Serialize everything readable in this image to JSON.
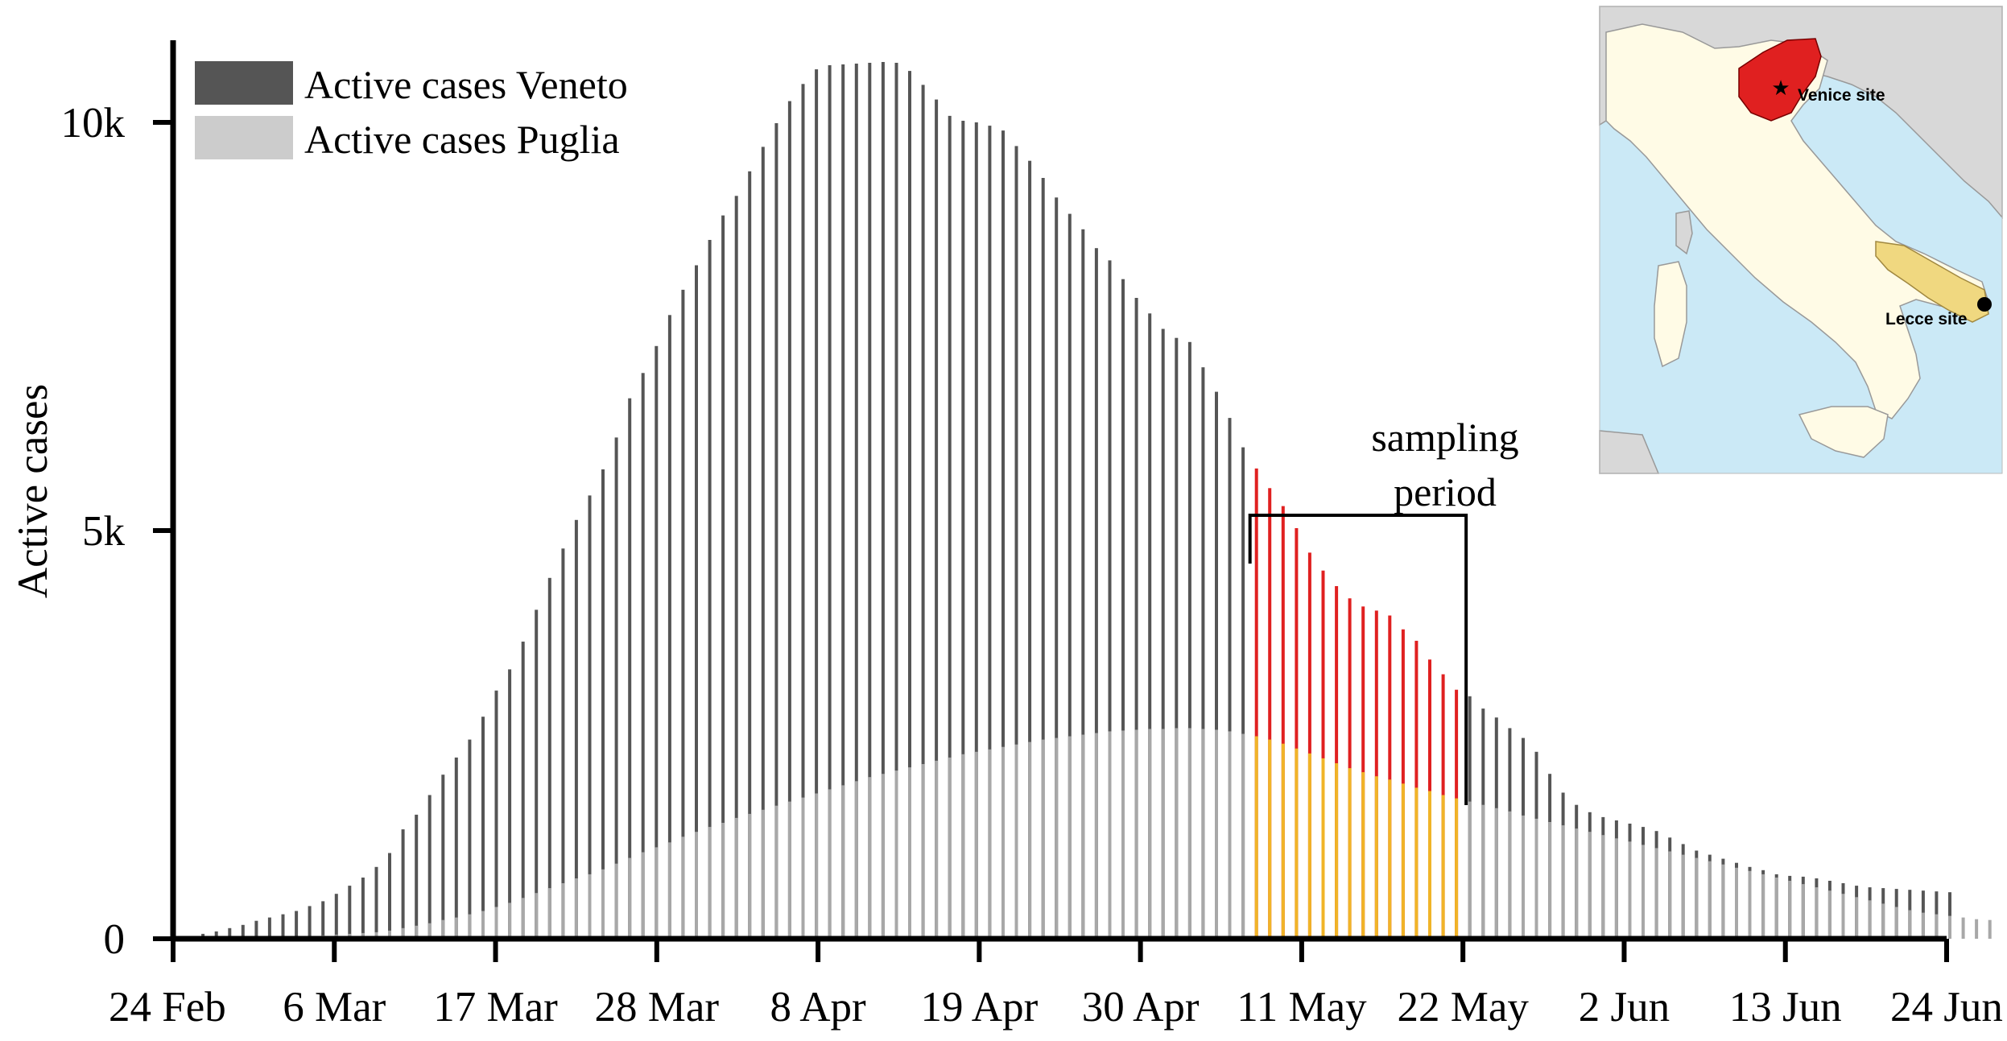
{
  "chart_data": {
    "type": "bar",
    "stacked": true,
    "ylabel": "Active cases",
    "ylim": [
      0,
      10800
    ],
    "y_ticks": [
      {
        "value": 0,
        "label": "0"
      },
      {
        "value": 5000,
        "label": "5k"
      },
      {
        "value": 10000,
        "label": "10k"
      }
    ],
    "x_ticks": [
      {
        "index": 0,
        "label": "24 Feb"
      },
      {
        "index": 11,
        "label": "6 Mar"
      },
      {
        "index": 22,
        "label": "17 Mar"
      },
      {
        "index": 33,
        "label": "28 Mar"
      },
      {
        "index": 44,
        "label": "8 Apr"
      },
      {
        "index": 55,
        "label": "19 Apr"
      },
      {
        "index": 66,
        "label": "30 Apr"
      },
      {
        "index": 77,
        "label": "11 May"
      },
      {
        "index": 88,
        "label": "22 May"
      },
      {
        "index": 99,
        "label": "2 Jun"
      },
      {
        "index": 110,
        "label": "13 Jun"
      },
      {
        "index": 121,
        "label": "24 Jun"
      }
    ],
    "series": [
      {
        "name": "Active cases Veneto",
        "color": "#555555",
        "highlight_color": "#e02020",
        "values": [
          10,
          30,
          60,
          90,
          130,
          170,
          220,
          260,
          300,
          340,
          400,
          460,
          550,
          650,
          750,
          880,
          1050,
          1340,
          1520,
          1760,
          2010,
          2220,
          2440,
          2720,
          3040,
          3300,
          3640,
          4030,
          4420,
          4780,
          5130,
          5430,
          5750,
          6140,
          6620,
          6930,
          7260,
          7640,
          7950,
          8250,
          8560,
          8860,
          9100,
          9400,
          9700,
          9990,
          10260,
          10470,
          10650,
          10700,
          10710,
          10720,
          10730,
          10740,
          10730,
          10630,
          10460,
          10280,
          10080,
          10020,
          10000,
          9960,
          9900,
          9710,
          9530,
          9320,
          9080,
          8880,
          8690,
          8460,
          8310,
          8080,
          7850,
          7660,
          7470,
          7360,
          7310,
          7000,
          6700,
          6380,
          6020,
          5760,
          5520,
          5300,
          5030,
          4730,
          4510,
          4320,
          4170,
          4070,
          4020,
          3960,
          3790,
          3650,
          3420,
          3240,
          3050,
          2970,
          2820,
          2710,
          2580,
          2460,
          2290,
          2020,
          1790,
          1640,
          1550,
          1490,
          1450,
          1410,
          1370,
          1320,
          1240,
          1160,
          1080,
          1030,
          980,
          930,
          880,
          840,
          790,
          770,
          760,
          740,
          710,
          680,
          650,
          630,
          620,
          610,
          600,
          590,
          580,
          570
        ],
        "highlight_range": [
          81,
          96
        ]
      },
      {
        "name": "Active cases Puglia",
        "color": "#a8a8a8",
        "highlight_color": "#f0b428",
        "values": [
          0,
          0,
          0,
          0,
          0,
          5,
          10,
          15,
          20,
          25,
          30,
          40,
          50,
          60,
          70,
          80,
          100,
          130,
          160,
          190,
          230,
          260,
          300,
          340,
          390,
          440,
          500,
          560,
          620,
          680,
          740,
          790,
          850,
          920,
          990,
          1060,
          1120,
          1180,
          1250,
          1310,
          1370,
          1420,
          1480,
          1530,
          1580,
          1630,
          1680,
          1730,
          1780,
          1830,
          1880,
          1930,
          1980,
          2020,
          2060,
          2100,
          2140,
          2180,
          2220,
          2260,
          2290,
          2320,
          2350,
          2380,
          2410,
          2440,
          2460,
          2480,
          2500,
          2520,
          2540,
          2550,
          2560,
          2570,
          2570,
          2580,
          2580,
          2570,
          2560,
          2540,
          2510,
          2480,
          2440,
          2390,
          2330,
          2270,
          2210,
          2150,
          2090,
          2040,
          1990,
          1950,
          1900,
          1850,
          1810,
          1760,
          1720,
          1680,
          1640,
          1600,
          1560,
          1510,
          1470,
          1430,
          1390,
          1350,
          1310,
          1270,
          1230,
          1190,
          1150,
          1110,
          1070,
          1030,
          990,
          950,
          910,
          870,
          830,
          790,
          750,
          710,
          670,
          630,
          590,
          550,
          510,
          470,
          430,
          390,
          350,
          320,
          300,
          280,
          260,
          240,
          230
        ],
        "highlight_range": [
          81,
          96
        ]
      }
    ],
    "legend_position": "top-left",
    "annotations": [
      {
        "text_lines": [
          "sampling",
          "period"
        ],
        "start_index": 81,
        "end_index": 96
      }
    ],
    "inset_map": {
      "labels": [
        "Venice site",
        "Lecce site"
      ],
      "region_colors": {
        "veneto": "#e02020",
        "puglia": "#f0d880",
        "land": "#fffbe6",
        "other_land": "#d8d8d8",
        "sea": "#cbe9f6"
      }
    }
  }
}
